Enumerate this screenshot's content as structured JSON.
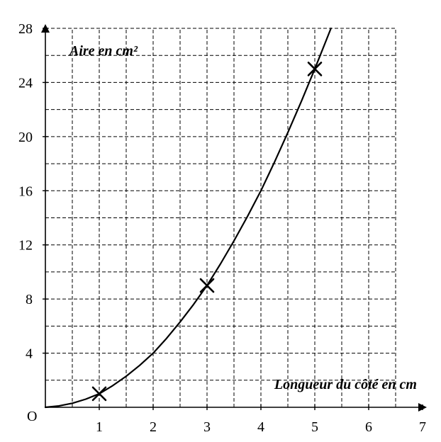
{
  "chart_data": {
    "type": "line",
    "xlabel": "Longueur du côté en cm",
    "ylabel": "Aire en cm²",
    "origin_label": "O",
    "xlim": [
      0,
      7
    ],
    "ylim": [
      0,
      28
    ],
    "x_ticks": [
      1,
      2,
      3,
      4,
      5,
      6,
      7
    ],
    "y_ticks": [
      4,
      8,
      12,
      16,
      20,
      24,
      28
    ],
    "x_grid_step": 0.5,
    "y_grid_step": 2,
    "grid": true,
    "series": [
      {
        "x": [
          0,
          0.25,
          0.5,
          0.75,
          1,
          1.25,
          1.5,
          1.75,
          2,
          2.25,
          2.5,
          2.75,
          3,
          3.25,
          3.5,
          3.75,
          4,
          4.25,
          4.5,
          4.75,
          5,
          5.1,
          5.2,
          5.3
        ],
        "y": [
          0,
          0.1,
          0.3,
          0.6,
          1,
          1.6,
          2.3,
          3.1,
          4,
          5.1,
          6.3,
          7.6,
          9,
          10.6,
          12.3,
          14.1,
          16,
          18.1,
          20.3,
          22.6,
          25,
          26,
          27,
          28
        ]
      }
    ],
    "markers": [
      {
        "x": 1,
        "y": 1
      },
      {
        "x": 3,
        "y": 9
      },
      {
        "x": 5,
        "y": 25
      }
    ]
  }
}
